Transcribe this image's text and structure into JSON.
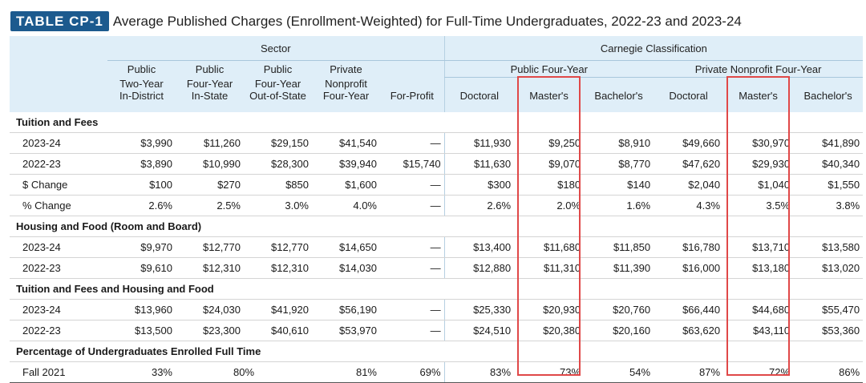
{
  "title": {
    "tag": "TABLE CP-1",
    "text": "Average Published Charges (Enrollment-Weighted) for Full-Time Undergraduates, 2022-23 and 2023-24"
  },
  "header": {
    "sector": "Sector",
    "carnegie": "Carnegie Classification",
    "public_four_year": "Public Four-Year",
    "private_nonprofit_four_year": "Private Nonprofit Four-Year",
    "columns": [
      [
        "Public",
        "Two-Year",
        "In-District"
      ],
      [
        "Public",
        "Four-Year",
        "In-State"
      ],
      [
        "Public",
        "Four-Year",
        "Out-of-State"
      ],
      [
        "Private",
        "Nonprofit",
        "Four-Year"
      ],
      [
        "",
        "",
        "For-Profit"
      ],
      [
        "",
        "",
        "Doctoral"
      ],
      [
        "",
        "",
        "Master's"
      ],
      [
        "",
        "",
        "Bachelor's"
      ],
      [
        "",
        "",
        "Doctoral"
      ],
      [
        "",
        "",
        "Master's"
      ],
      [
        "",
        "",
        "Bachelor's"
      ]
    ]
  },
  "sections": [
    {
      "title": "Tuition and Fees",
      "rows": [
        {
          "label": "2023-24",
          "values": [
            "$3,990",
            "$11,260",
            "$29,150",
            "$41,540",
            "—",
            "$11,930",
            "$9,250",
            "$8,910",
            "$49,660",
            "$30,970",
            "$41,890"
          ]
        },
        {
          "label": "2022-23",
          "values": [
            "$3,890",
            "$10,990",
            "$28,300",
            "$39,940",
            "$15,740",
            "$11,630",
            "$9,070",
            "$8,770",
            "$47,620",
            "$29,930",
            "$40,340"
          ]
        },
        {
          "label": "$ Change",
          "values": [
            "$100",
            "$270",
            "$850",
            "$1,600",
            "—",
            "$300",
            "$180",
            "$140",
            "$2,040",
            "$1,040",
            "$1,550"
          ]
        },
        {
          "label": "% Change",
          "values": [
            "2.6%",
            "2.5%",
            "3.0%",
            "4.0%",
            "—",
            "2.6%",
            "2.0%",
            "1.6%",
            "4.3%",
            "3.5%",
            "3.8%"
          ]
        }
      ]
    },
    {
      "title": "Housing and Food (Room and Board)",
      "rows": [
        {
          "label": "2023-24",
          "values": [
            "$9,970",
            "$12,770",
            "$12,770",
            "$14,650",
            "—",
            "$13,400",
            "$11,680",
            "$11,850",
            "$16,780",
            "$13,710",
            "$13,580"
          ]
        },
        {
          "label": "2022-23",
          "values": [
            "$9,610",
            "$12,310",
            "$12,310",
            "$14,030",
            "—",
            "$12,880",
            "$11,310",
            "$11,390",
            "$16,000",
            "$13,180",
            "$13,020"
          ]
        }
      ]
    },
    {
      "title": "Tuition and Fees and Housing and Food",
      "rows": [
        {
          "label": "2023-24",
          "values": [
            "$13,960",
            "$24,030",
            "$41,920",
            "$56,190",
            "—",
            "$25,330",
            "$20,930",
            "$20,760",
            "$66,440",
            "$44,680",
            "$55,470"
          ]
        },
        {
          "label": "2022-23",
          "values": [
            "$13,500",
            "$23,300",
            "$40,610",
            "$53,970",
            "—",
            "$24,510",
            "$20,380",
            "$20,160",
            "$63,620",
            "$43,110",
            "$53,360"
          ]
        }
      ]
    },
    {
      "title": "Percentage of Undergraduates Enrolled Full Time",
      "rows": [
        {
          "label": "Fall 2021",
          "values": [
            "33%",
            "80%",
            "81%",
            "69%",
            "83%",
            "73%",
            "54%",
            "87%",
            "72%",
            "86%"
          ],
          "merged_public_four_year": true
        }
      ]
    }
  ],
  "highlight_color": "#e04848"
}
